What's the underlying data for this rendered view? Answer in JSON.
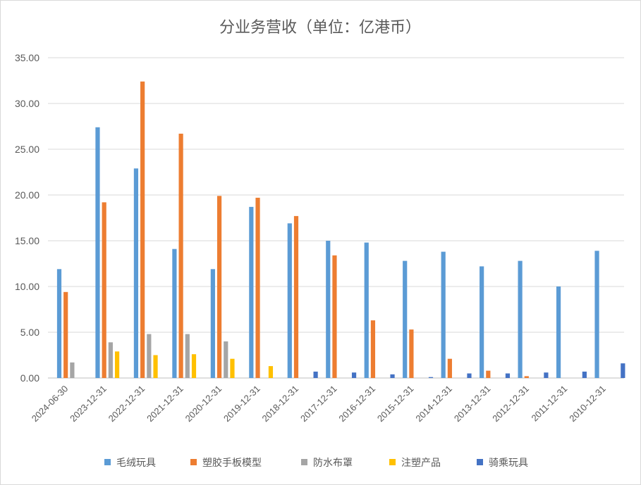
{
  "chart_data": {
    "type": "bar",
    "title": "分业务营收（单位：亿港币）",
    "categories": [
      "2024-06-30",
      "2023-12-31",
      "2022-12-31",
      "2021-12-31",
      "2020-12-31",
      "2019-12-31",
      "2018-12-31",
      "2017-12-31",
      "2016-12-31",
      "2015-12-31",
      "2014-12-31",
      "2013-12-31",
      "2012-12-31",
      "2011-12-31",
      "2010-12-31"
    ],
    "ylim": [
      0,
      35
    ],
    "yticks": [
      "0.00",
      "5.00",
      "10.00",
      "15.00",
      "20.00",
      "25.00",
      "30.00",
      "35.00"
    ],
    "grid": true,
    "legend_position": "bottom",
    "series": [
      {
        "name": "毛绒玩具",
        "color": "#5B9BD5",
        "values": [
          11.9,
          27.4,
          22.9,
          14.1,
          11.9,
          18.7,
          16.9,
          15.0,
          14.8,
          12.8,
          13.8,
          12.2,
          12.8,
          10.0,
          13.9
        ]
      },
      {
        "name": "塑胶手板模型",
        "color": "#ED7D31",
        "values": [
          9.4,
          19.2,
          32.4,
          26.7,
          19.9,
          19.7,
          17.7,
          13.4,
          6.3,
          5.3,
          2.1,
          0.8,
          0.2,
          null,
          null
        ]
      },
      {
        "name": "防水布罩",
        "color": "#A5A5A5",
        "values": [
          1.7,
          3.9,
          4.8,
          4.8,
          4.0,
          null,
          null,
          null,
          null,
          null,
          null,
          null,
          null,
          null,
          null
        ]
      },
      {
        "name": "注塑产品",
        "color": "#FFC000",
        "values": [
          null,
          2.9,
          2.5,
          2.6,
          2.1,
          1.3,
          null,
          null,
          null,
          null,
          null,
          null,
          null,
          null,
          null
        ]
      },
      {
        "name": "骑乘玩具",
        "color": "#4472C4",
        "values": [
          null,
          null,
          null,
          null,
          null,
          null,
          0.7,
          0.6,
          0.4,
          0.1,
          0.5,
          0.5,
          0.6,
          0.7,
          1.6
        ]
      }
    ]
  }
}
